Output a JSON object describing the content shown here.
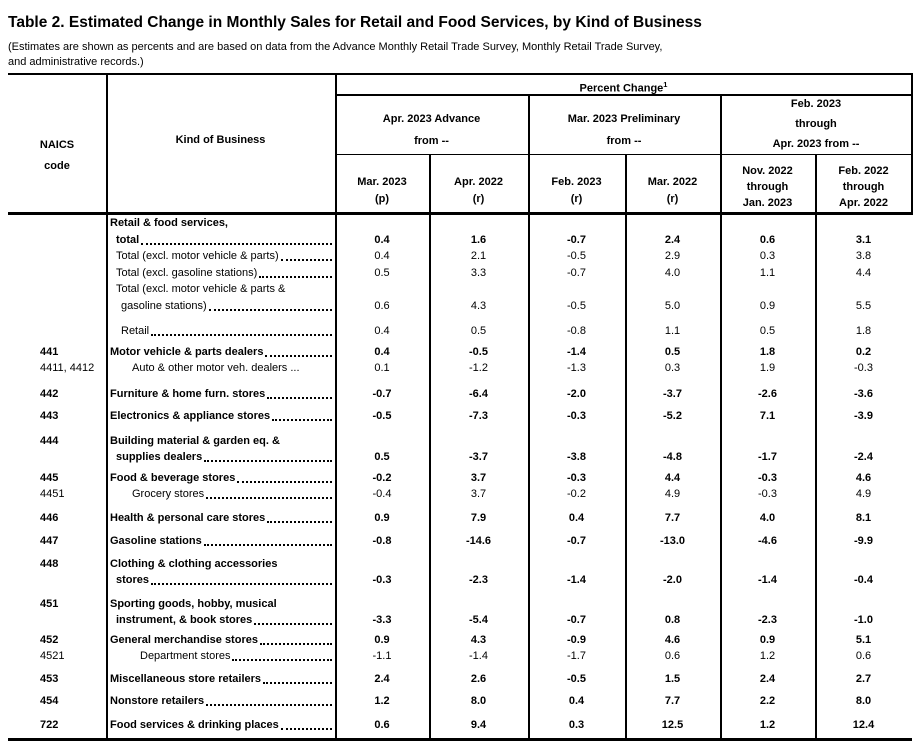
{
  "title": "Table 2.  Estimated Change in Monthly Sales for Retail and Food Services, by Kind of Business",
  "subtitle_line1": "(Estimates are shown as percents and are based on data from the Advance Monthly Retail Trade Survey,  Monthly Retail Trade Survey,",
  "subtitle_line2": " and administrative records.)",
  "header": {
    "naics_label_line1": "NAICS",
    "naics_label_line2": "code",
    "kind_of_business": "Kind of Business",
    "percent_change": "Percent Change",
    "percent_change_footnote": "1",
    "groups": [
      {
        "lines": [
          "Apr. 2023 Advance",
          "from --"
        ]
      },
      {
        "lines": [
          "Mar. 2023 Preliminary",
          "from --"
        ]
      },
      {
        "lines": [
          "Feb. 2023",
          "through",
          "Apr. 2023 from --"
        ]
      }
    ],
    "columns": [
      {
        "lines": [
          "Mar. 2023",
          "(p)"
        ]
      },
      {
        "lines": [
          "Apr. 2022",
          "(r)"
        ]
      },
      {
        "lines": [
          "Feb. 2023",
          "(r)"
        ]
      },
      {
        "lines": [
          "Mar. 2022",
          "(r)"
        ]
      },
      {
        "lines": [
          "Nov. 2022",
          "through",
          "Jan. 2023"
        ]
      },
      {
        "lines": [
          "Feb. 2022",
          "through",
          "Apr. 2022"
        ]
      }
    ]
  },
  "rows": [
    {
      "naics": "",
      "bold": true,
      "gap": 0,
      "lines": [
        {
          "text": "Retail & food services,",
          "indent": 0,
          "leader": false
        },
        {
          "text": "total",
          "indent": 6,
          "leader": true
        }
      ],
      "values": [
        "0.4",
        "1.6",
        "-0.7",
        "2.4",
        "0.6",
        "3.1"
      ]
    },
    {
      "naics": "",
      "bold": false,
      "gap": 0,
      "lines": [
        {
          "text": "Total (excl. motor vehicle & parts)",
          "indent": 6,
          "leader": true
        }
      ],
      "values": [
        "0.4",
        "2.1",
        "-0.5",
        "2.9",
        "0.3",
        "3.8"
      ]
    },
    {
      "naics": "",
      "bold": false,
      "gap": 0,
      "lines": [
        {
          "text": "Total (excl. gasoline stations)",
          "indent": 6,
          "leader": true
        }
      ],
      "values": [
        "0.5",
        "3.3",
        "-0.7",
        "4.0",
        "1.1",
        "4.4"
      ]
    },
    {
      "naics": "",
      "bold": false,
      "gap": 0,
      "lines": [
        {
          "text": "Total (excl. motor vehicle & parts &",
          "indent": 6,
          "leader": false
        },
        {
          "text": "gasoline stations)",
          "indent": 11,
          "leader": true
        }
      ],
      "values": [
        "0.6",
        "4.3",
        "-0.5",
        "5.0",
        "0.9",
        "5.5"
      ]
    },
    {
      "naics": "",
      "bold": false,
      "gap": 9,
      "lines": [
        {
          "text": "Retail",
          "indent": 11,
          "leader": true
        }
      ],
      "values": [
        "0.4",
        "0.5",
        "-0.8",
        "1.1",
        "0.5",
        "1.8"
      ]
    },
    {
      "naics": "441",
      "bold": true,
      "gap": 4,
      "lines": [
        {
          "text": "Motor vehicle & parts dealers",
          "indent": 0,
          "leader": true
        }
      ],
      "values": [
        "0.4",
        "-0.5",
        "-1.4",
        "0.5",
        "1.8",
        "0.2"
      ]
    },
    {
      "naics": "4411, 4412",
      "bold": false,
      "gap": 0,
      "lines": [
        {
          "text": "Auto & other motor veh. dealers ...",
          "indent": 22,
          "leader": false
        }
      ],
      "values": [
        "0.1",
        "-1.2",
        "-1.3",
        "0.3",
        "1.9",
        "-0.3"
      ]
    },
    {
      "naics": "442",
      "bold": true,
      "gap": 9,
      "lines": [
        {
          "text": "Furniture & home furn. stores",
          "indent": 0,
          "leader": true
        }
      ],
      "values": [
        "-0.7",
        "-6.4",
        "-2.0",
        "-3.7",
        "-2.6",
        "-3.6"
      ]
    },
    {
      "naics": "443",
      "bold": true,
      "gap": 6,
      "lines": [
        {
          "text": "Electronics & appliance stores",
          "indent": 0,
          "leader": true
        }
      ],
      "values": [
        "-0.5",
        "-7.3",
        "-0.3",
        "-5.2",
        "7.1",
        "-3.9"
      ]
    },
    {
      "naics": "444",
      "bold": true,
      "gap": 8,
      "lines": [
        {
          "text": "Building material & garden eq. &",
          "indent": 0,
          "leader": false
        },
        {
          "text": "supplies dealers",
          "indent": 6,
          "leader": true
        }
      ],
      "values": [
        "0.5",
        "-3.7",
        "-3.8",
        "-4.8",
        "-1.7",
        "-2.4"
      ]
    },
    {
      "naics": "445",
      "bold": true,
      "gap": 4,
      "lines": [
        {
          "text": "Food & beverage stores",
          "indent": 0,
          "leader": true
        }
      ],
      "values": [
        "-0.2",
        "3.7",
        "-0.3",
        "4.4",
        "-0.3",
        "4.6"
      ]
    },
    {
      "naics": "4451",
      "bold": false,
      "gap": 0,
      "lines": [
        {
          "text": "Grocery stores",
          "indent": 22,
          "leader": true
        }
      ],
      "values": [
        "-0.4",
        "3.7",
        "-0.2",
        "4.9",
        "-0.3",
        "4.9"
      ]
    },
    {
      "naics": "446",
      "bold": true,
      "gap": 7,
      "lines": [
        {
          "text": "Health & personal care stores",
          "indent": 0,
          "leader": true
        }
      ],
      "values": [
        "0.9",
        "7.9",
        "0.4",
        "7.7",
        "4.0",
        "8.1"
      ]
    },
    {
      "naics": "447",
      "bold": true,
      "gap": 7,
      "lines": [
        {
          "text": "Gasoline stations",
          "indent": 0,
          "leader": true
        }
      ],
      "values": [
        "-0.8",
        "-14.6",
        "-0.7",
        "-13.0",
        "-4.6",
        "-9.9"
      ]
    },
    {
      "naics": "448",
      "bold": true,
      "gap": 6,
      "lines": [
        {
          "text": "Clothing & clothing accessories",
          "indent": 0,
          "leader": false
        },
        {
          "text": "stores",
          "indent": 6,
          "leader": true
        }
      ],
      "values": [
        "-0.3",
        "-2.3",
        "-1.4",
        "-2.0",
        "-1.4",
        "-0.4"
      ]
    },
    {
      "naics": "451",
      "bold": true,
      "gap": 7,
      "lines": [
        {
          "text": "Sporting goods, hobby, musical",
          "indent": 0,
          "leader": false
        },
        {
          "text": "instrument, & book stores",
          "indent": 6,
          "leader": true
        }
      ],
      "values": [
        "-3.3",
        "-5.4",
        "-0.7",
        "0.8",
        "-2.3",
        "-1.0"
      ]
    },
    {
      "naics": "452",
      "bold": true,
      "gap": 3,
      "lines": [
        {
          "text": "General merchandise stores",
          "indent": 0,
          "leader": true
        }
      ],
      "values": [
        "0.9",
        "4.3",
        "-0.9",
        "4.6",
        "0.9",
        "5.1"
      ]
    },
    {
      "naics": "4521",
      "bold": false,
      "gap": 0,
      "lines": [
        {
          "text": "Department stores",
          "indent": 30,
          "leader": true
        }
      ],
      "values": [
        "-1.1",
        "-1.4",
        "-1.7",
        "0.6",
        "1.2",
        "0.6"
      ]
    },
    {
      "naics": "453",
      "bold": true,
      "gap": 6,
      "lines": [
        {
          "text": "Miscellaneous store retailers",
          "indent": 0,
          "leader": true
        }
      ],
      "values": [
        "2.4",
        "2.6",
        "-0.5",
        "1.5",
        "2.4",
        "2.7"
      ]
    },
    {
      "naics": "454",
      "bold": true,
      "gap": 6,
      "lines": [
        {
          "text": "Nonstore retailers",
          "indent": 0,
          "leader": true
        }
      ],
      "values": [
        "1.2",
        "8.0",
        "0.4",
        "7.7",
        "2.2",
        "8.0"
      ]
    },
    {
      "naics": "722",
      "bold": true,
      "gap": 7,
      "lines": [
        {
          "text": "Food services & drinking places",
          "indent": 0,
          "leader": true
        }
      ],
      "values": [
        "0.6",
        "9.4",
        "0.3",
        "12.5",
        "1.2",
        "12.4"
      ]
    }
  ]
}
